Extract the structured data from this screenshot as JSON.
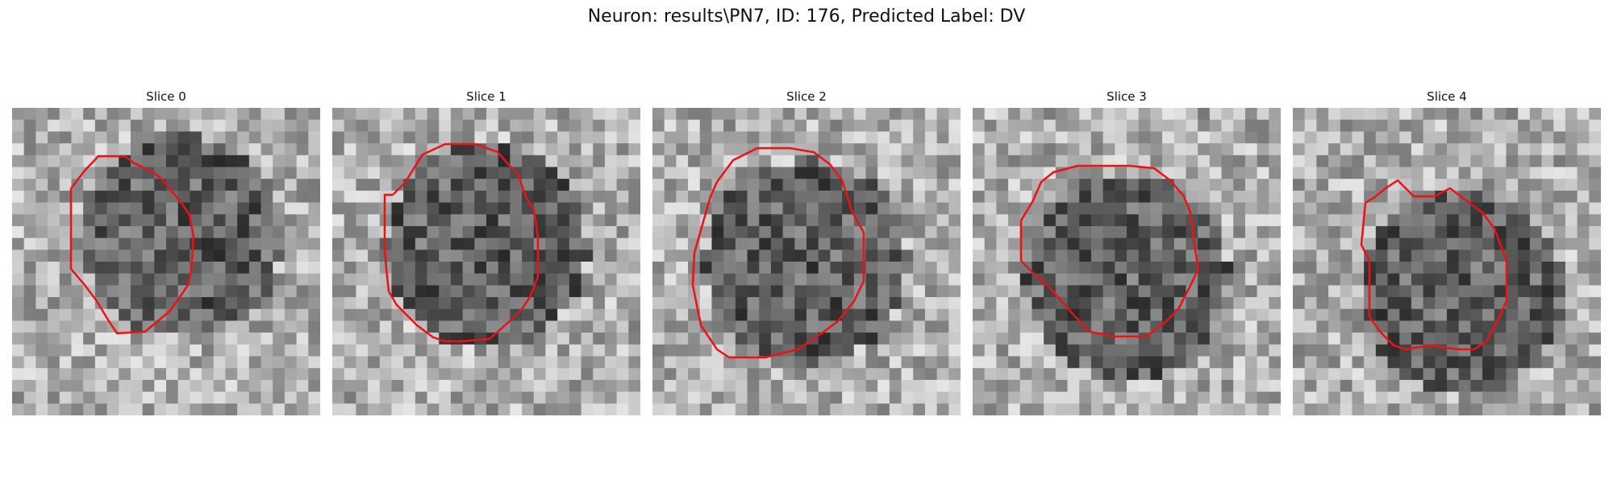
{
  "title": "Neuron: results\\PN7, ID: 176, Predicted Label: DV",
  "contour_color": "#ee1111",
  "panels": [
    {
      "label": "Slice 0",
      "seed": 11,
      "bright_cx": 0.55,
      "bright_cy": 0.42
    },
    {
      "label": "Slice 1",
      "seed": 23,
      "bright_cx": 0.5,
      "bright_cy": 0.45
    },
    {
      "label": "Slice 2",
      "seed": 37,
      "bright_cx": 0.5,
      "bright_cy": 0.5
    },
    {
      "label": "Slice 3",
      "seed": 41,
      "bright_cx": 0.5,
      "bright_cy": 0.55
    },
    {
      "label": "Slice 4",
      "seed": 59,
      "bright_cx": 0.55,
      "bright_cy": 0.6
    }
  ]
}
